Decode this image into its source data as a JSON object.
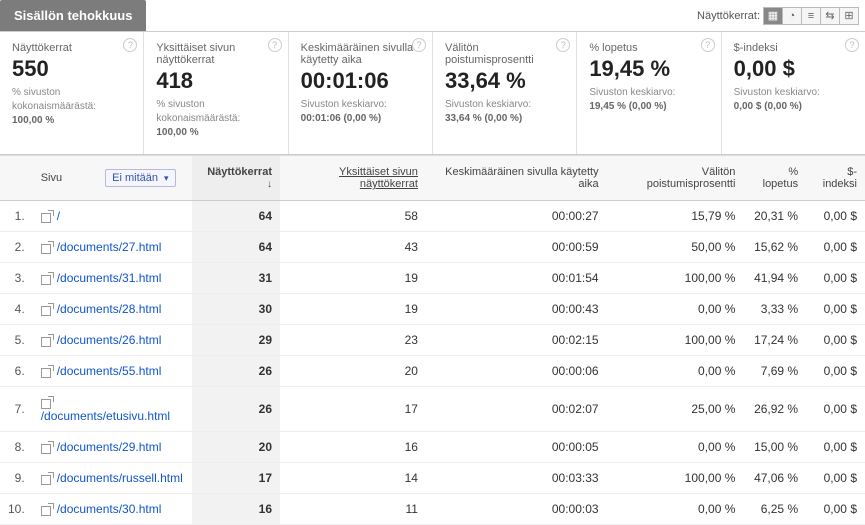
{
  "tab_label": "Sisällön tehokkuus",
  "view_label": "Näyttökerrat:",
  "scorecards": [
    {
      "title": "Näyttökerrat",
      "value": "550",
      "sub1": "% sivuston kokonaismäärästä:",
      "sub2": "100,00 %"
    },
    {
      "title": "Yksittäiset sivun näyttökerrat",
      "value": "418",
      "sub1": "% sivuston kokonaismäärästä:",
      "sub2": "100,00 %"
    },
    {
      "title": "Keskimääräinen sivulla käytetty aika",
      "value": "00:01:06",
      "sub1": "Sivuston keskiarvo:",
      "sub2": "00:01:06 (0,00 %)"
    },
    {
      "title": "Välitön poistumisprosentti",
      "value": "33,64 %",
      "sub1": "Sivuston keskiarvo:",
      "sub2": "33,64 % (0,00 %)"
    },
    {
      "title": "% lopetus",
      "value": "19,45 %",
      "sub1": "Sivuston keskiarvo:",
      "sub2": "19,45 % (0,00 %)"
    },
    {
      "title": "$-indeksi",
      "value": "0,00 $",
      "sub1": "Sivuston keskiarvo:",
      "sub2": "0,00 $ (0,00 %)"
    }
  ],
  "columns": {
    "page": "Sivu",
    "segment": "Ei mitään",
    "pageviews": "Näyttökerrat",
    "unique": "Yksittäiset sivun näyttökerrat",
    "avgtime": "Keskimääräinen sivulla käytetty aika",
    "bounce": "Välitön poistumisprosentti",
    "exit": "% lopetus",
    "dollar": "$-indeksi"
  },
  "rows": [
    {
      "n": "1.",
      "page": "/",
      "pv": "64",
      "u": "58",
      "t": "00:00:27",
      "b": "15,79 %",
      "e": "20,31 %",
      "d": "0,00 $"
    },
    {
      "n": "2.",
      "page": "/documents/27.html",
      "pv": "64",
      "u": "43",
      "t": "00:00:59",
      "b": "50,00 %",
      "e": "15,62 %",
      "d": "0,00 $"
    },
    {
      "n": "3.",
      "page": "/documents/31.html",
      "pv": "31",
      "u": "19",
      "t": "00:01:54",
      "b": "100,00 %",
      "e": "41,94 %",
      "d": "0,00 $"
    },
    {
      "n": "4.",
      "page": "/documents/28.html",
      "pv": "30",
      "u": "19",
      "t": "00:00:43",
      "b": "0,00 %",
      "e": "3,33 %",
      "d": "0,00 $"
    },
    {
      "n": "5.",
      "page": "/documents/26.html",
      "pv": "29",
      "u": "23",
      "t": "00:02:15",
      "b": "100,00 %",
      "e": "17,24 %",
      "d": "0,00 $"
    },
    {
      "n": "6.",
      "page": "/documents/55.html",
      "pv": "26",
      "u": "20",
      "t": "00:00:06",
      "b": "0,00 %",
      "e": "7,69 %",
      "d": "0,00 $"
    },
    {
      "n": "7.",
      "page": "/documents/etusivu.html",
      "pv": "26",
      "u": "17",
      "t": "00:02:07",
      "b": "25,00 %",
      "e": "26,92 %",
      "d": "0,00 $"
    },
    {
      "n": "8.",
      "page": "/documents/29.html",
      "pv": "20",
      "u": "16",
      "t": "00:00:05",
      "b": "0,00 %",
      "e": "15,00 %",
      "d": "0,00 $"
    },
    {
      "n": "9.",
      "page": "/documents/russell.html",
      "pv": "17",
      "u": "14",
      "t": "00:03:33",
      "b": "100,00 %",
      "e": "47,06 %",
      "d": "0,00 $"
    },
    {
      "n": "10.",
      "page": "/documents/30.html",
      "pv": "16",
      "u": "11",
      "t": "00:00:03",
      "b": "0,00 %",
      "e": "6,25 %",
      "d": "0,00 $"
    }
  ]
}
